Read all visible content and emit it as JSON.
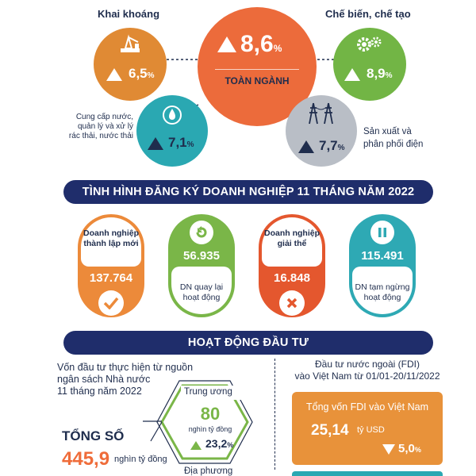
{
  "top": {
    "center": {
      "value": "8,6",
      "unit": "%",
      "label": "TOÀN NGÀNH",
      "trend": "up"
    },
    "mining": {
      "label": "Khai khoáng",
      "value": "6,5",
      "unit": "%",
      "icon": "oil-rig-icon"
    },
    "manufacturing": {
      "label": "Chế biến, chế tạo",
      "value": "8,9",
      "unit": "%",
      "icon": "gears-icon"
    },
    "water": {
      "label_lines": [
        "Cung cấp nước,",
        "quản lý và xử lý",
        "rác thải, nước thải"
      ],
      "value": "7,1",
      "unit": "%",
      "icon": "water-drop-icon"
    },
    "power": {
      "label_lines": [
        "Sản xuất và",
        "phân phối điện"
      ],
      "value": "7,7",
      "unit": "%",
      "icon": "power-tower-icon"
    }
  },
  "registration": {
    "title": "TÌNH HÌNH ĐĂNG KÝ DOANH NGHIỆP 11 THÁNG NĂM 2022",
    "cards": [
      {
        "label_lines": [
          "Doanh nghiệp",
          "thành lập mới"
        ],
        "value": "137.764",
        "icon": "check-icon"
      },
      {
        "label_lines": [
          "DN quay lại",
          "hoạt động"
        ],
        "value": "56.935",
        "icon": "return-arrow-icon"
      },
      {
        "label_lines": [
          "Doanh nghiệp",
          "giải thể"
        ],
        "value": "16.848",
        "icon": "cross-icon"
      },
      {
        "label_lines": [
          "DN tạm ngừng",
          "hoạt động"
        ],
        "value": "115.491",
        "icon": "pause-icon"
      }
    ]
  },
  "investment": {
    "title": "HOẠT ĐỘNG ĐẦU TƯ",
    "left_heading_lines": [
      "Vốn đầu tư thực hiện từ nguồn",
      "ngân sách Nhà nước",
      "11 tháng năm 2022"
    ],
    "total_label": "TỔNG SỐ",
    "total_value": "445,9",
    "total_unit": "nghìn tỷ đồng",
    "central": {
      "label": "Trung ương",
      "value": "80",
      "unit": "nghìn tỷ đồng",
      "change": "23,2",
      "change_unit": "%"
    },
    "local": {
      "label": "Địa phương"
    },
    "right_heading_lines": [
      "Đầu tư nước ngoài (FDI)",
      "vào Việt Nam từ 01/01-20/11/2022"
    ],
    "fdi": {
      "title": "Tổng vốn FDI vào Việt Nam",
      "value": "25,14",
      "unit": "tỷ USD",
      "change": "5,0",
      "change_unit": "%"
    }
  },
  "colors": {
    "navy": "#1f2d6b",
    "orange": "#ef6c3a",
    "amber": "#e79a35",
    "green": "#7bb84a",
    "teal": "#2fa9b3",
    "gray": "#b9bec6",
    "red": "#e4572e"
  }
}
